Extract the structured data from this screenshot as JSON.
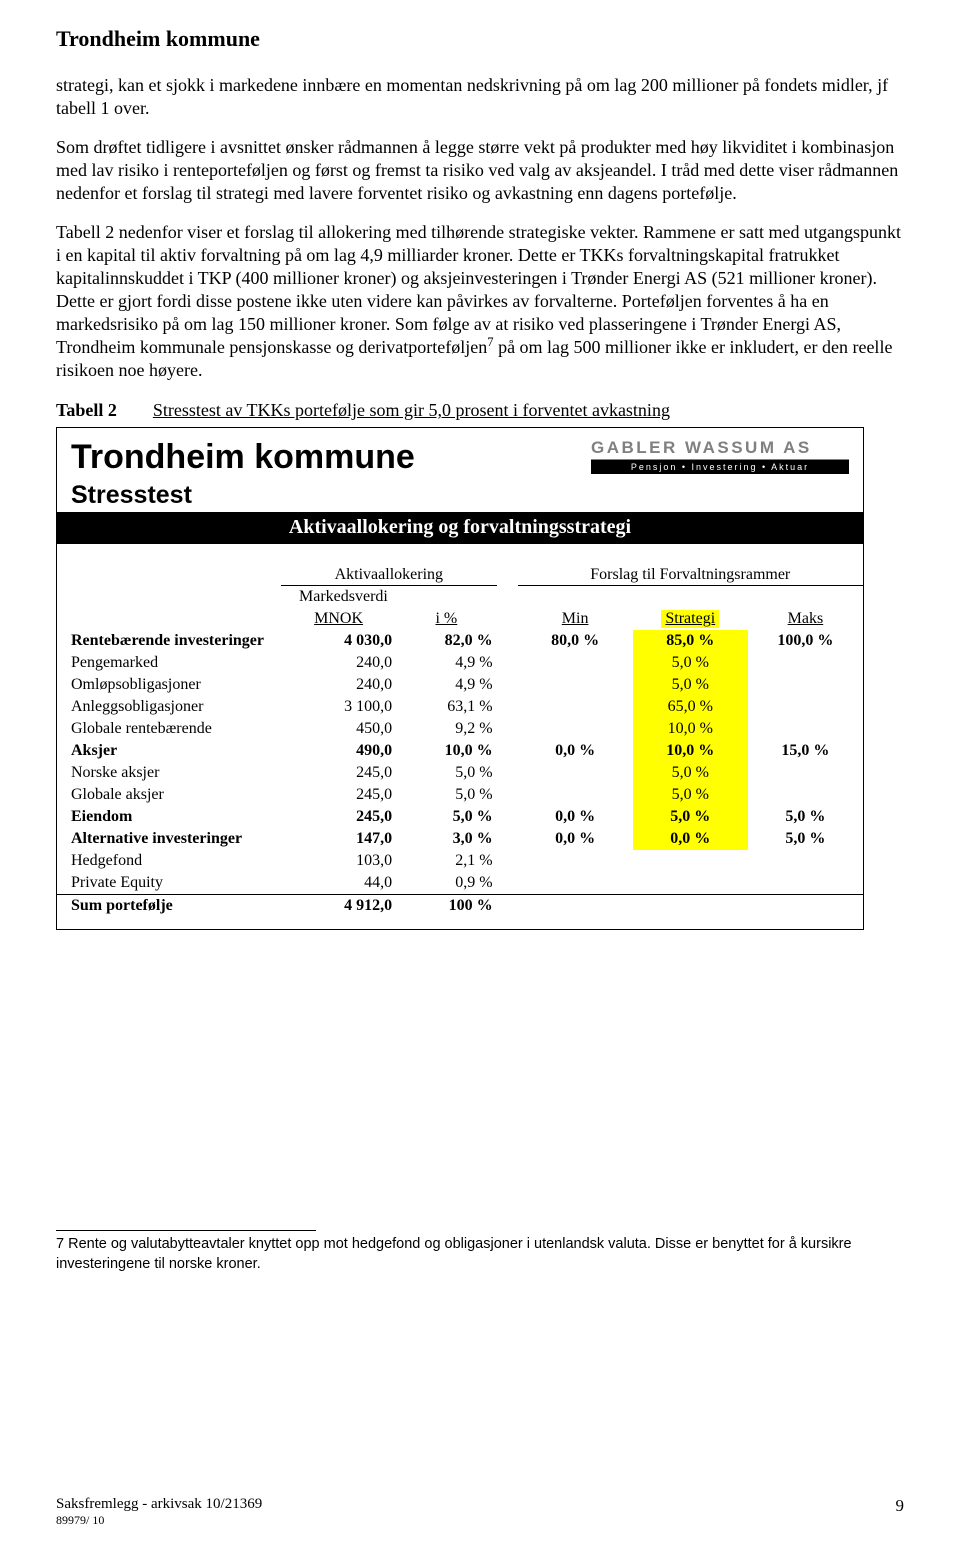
{
  "header": "Trondheim kommune",
  "p1": "strategi, kan et sjokk i markedene innbære en momentan nedskrivning på om lag 200 millioner på fondets midler, jf tabell 1 over.",
  "p2": "Som drøftet tidligere i avsnittet ønsker rådmannen å legge større vekt på produkter med høy likviditet i kombinasjon med lav risiko i renteporteføljen og først og fremst ta risiko ved valg av aksjeandel. I tråd med dette viser rådmannen nedenfor et forslag til strategi med lavere forventet risiko og avkastning enn dagens portefølje.",
  "p3_a": "Tabell 2 nedenfor viser et forslag til allokering med tilhørende strategiske vekter. Rammene er satt med utgangspunkt i en kapital til aktiv forvaltning på om lag 4,9 milliarder kroner. Dette er TKKs forvaltningskapital fratrukket kapitalinnskuddet i TKP (400 millioner kroner) og aksjeinvesteringen i Trønder Energi AS (521 millioner kroner). Dette er gjort fordi disse postene ikke uten videre kan påvirkes av forvalterne. Porteføljen forventes å ha en markedsrisiko på om lag 150 millioner kroner. Som følge av at risiko ved plasseringene i Trønder Energi AS, Trondheim kommunale pensjonskasse og derivatporteføljen",
  "p3_sup": "7",
  "p3_b": " på om lag 500 millioner ikke er inkludert, er den reelle risikoen noe høyere.",
  "tabell_label": "Tabell 2",
  "tabell_caption": "Stresstest av TKKs portefølje som gir 5,0 prosent i forventet avkastning",
  "panel": {
    "title": "Trondheim kommune",
    "subtitle": "Stresstest",
    "logo_top": "GABLER WASSUM AS",
    "logo_sub": "Pensjon • Investering • Aktuar",
    "bar": "Aktivaallokering og forvaltningsstrategi",
    "group1": "Aktivaallokering",
    "group2": "Forslag til Forvaltningsrammer",
    "sub_mv": "Markedsverdi",
    "sub_mnok": "MNOK",
    "sub_ipct": "i %",
    "sub_min": "Min",
    "sub_strat": "Strategi",
    "sub_max": "Maks"
  },
  "rows": [
    {
      "label": "Rentebærende investeringer",
      "mnok": "4 030,0",
      "pct": "82,0 %",
      "min": "80,0 %",
      "strat": "85,0 %",
      "max": "100,0 %",
      "bold": true
    },
    {
      "label": "Pengemarked",
      "mnok": "240,0",
      "pct": "4,9 %",
      "min": "",
      "strat": "5,0 %",
      "max": ""
    },
    {
      "label": "Omløpsobligasjoner",
      "mnok": "240,0",
      "pct": "4,9 %",
      "min": "",
      "strat": "5,0 %",
      "max": ""
    },
    {
      "label": "Anleggsobligasjoner",
      "mnok": "3 100,0",
      "pct": "63,1 %",
      "min": "",
      "strat": "65,0 %",
      "max": ""
    },
    {
      "label": "Globale rentebærende",
      "mnok": "450,0",
      "pct": "9,2 %",
      "min": "",
      "strat": "10,0 %",
      "max": ""
    },
    {
      "label": "Aksjer",
      "mnok": "490,0",
      "pct": "10,0 %",
      "min": "0,0 %",
      "strat": "10,0 %",
      "max": "15,0 %",
      "bold": true
    },
    {
      "label": "Norske aksjer",
      "mnok": "245,0",
      "pct": "5,0 %",
      "min": "",
      "strat": "5,0 %",
      "max": ""
    },
    {
      "label": "Globale aksjer",
      "mnok": "245,0",
      "pct": "5,0 %",
      "min": "",
      "strat": "5,0 %",
      "max": ""
    },
    {
      "label": "Eiendom",
      "mnok": "245,0",
      "pct": "5,0 %",
      "min": "0,0 %",
      "strat": "5,0 %",
      "max": "5,0 %",
      "bold": true
    },
    {
      "label": "Alternative investeringer",
      "mnok": "147,0",
      "pct": "3,0 %",
      "min": "0,0 %",
      "strat": "0,0 %",
      "max": "5,0 %",
      "bold": true
    },
    {
      "label": "Hedgefond",
      "mnok": "103,0",
      "pct": "2,1 %",
      "min": "",
      "strat": "",
      "max": ""
    },
    {
      "label": "Private Equity",
      "mnok": "44,0",
      "pct": "0,9 %",
      "min": "",
      "strat": "",
      "max": ""
    }
  ],
  "sum": {
    "label": "Sum portefølje",
    "mnok": "4 912,0",
    "pct": "100 %"
  },
  "footnote": "7 Rente og valutabytteavtaler knyttet opp mot hedgefond og obligasjoner i utenlandsk valuta. Disse er benyttet for å kursikre investeringene til norske kroner.",
  "footer1": "Saksfremlegg - arkivsak 10/21369",
  "footer2": "89979/ 10",
  "page_no": "9"
}
